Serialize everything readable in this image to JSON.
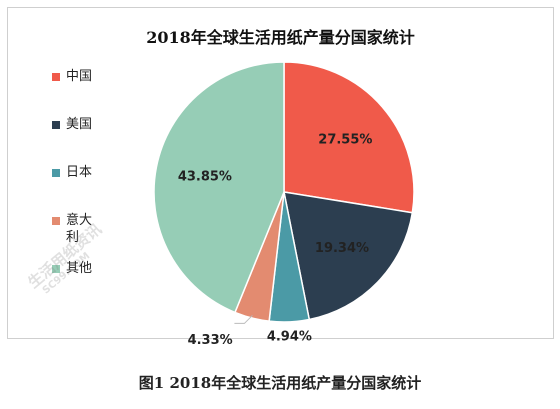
{
  "chart_data": {
    "type": "pie",
    "title": "2018年全球生活用纸产量分国家统计",
    "categories": [
      "中国",
      "美国",
      "日本",
      "意大利",
      "其他"
    ],
    "values": [
      27.55,
      19.34,
      4.94,
      4.33,
      43.85
    ],
    "labels": [
      "27.55%",
      "19.34%",
      "4.94%",
      "4.33%",
      "43.85%"
    ],
    "colors": [
      "#f05a4a",
      "#2c3e50",
      "#4b9aa6",
      "#e38b70",
      "#96cdb6"
    ],
    "legend_position": "left"
  },
  "caption": "图1  2018年全球生活用纸产量分国家统计",
  "watermark": {
    "text": "生活用纸资讯",
    "subtext": "SC99.COM"
  }
}
